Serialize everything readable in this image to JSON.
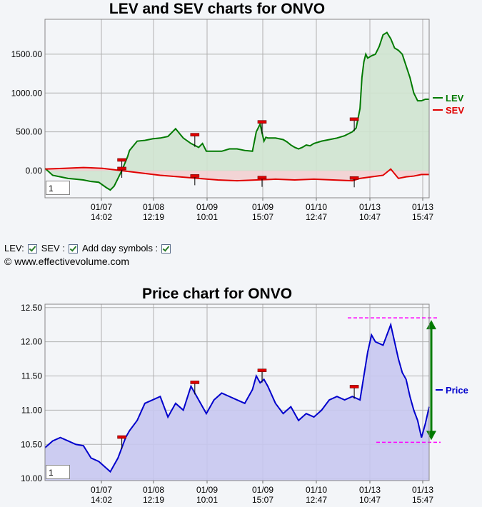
{
  "chart_data": [
    {
      "type": "area",
      "title": "LEV and SEV charts for ONVO",
      "ylim": [
        -350,
        1950
      ],
      "y_ticks": [
        "1500.00",
        "1000.00",
        "500.00",
        "0.00"
      ],
      "y_tick_values": [
        1500,
        1000,
        500,
        0
      ],
      "x_ticks": [
        {
          "date": "01/07",
          "time": "14:02"
        },
        {
          "date": "01/08",
          "time": "12:19"
        },
        {
          "date": "01/09",
          "time": "10:01"
        },
        {
          "date": "01/09",
          "time": "15:07"
        },
        {
          "date": "01/10",
          "time": "12:47"
        },
        {
          "date": "01/13",
          "time": "10:47"
        },
        {
          "date": "01/13",
          "time": "15:47"
        }
      ],
      "x_range": [
        0,
        100
      ],
      "grid": true,
      "legend_position": "right",
      "series": [
        {
          "name": "LEV",
          "color": "#007a00",
          "fill": "#cfe4cf",
          "x": [
            0,
            2,
            4,
            6,
            8,
            10,
            12,
            14,
            16,
            17,
            18,
            19,
            20,
            21,
            21.5,
            22,
            24,
            26,
            27,
            28,
            30,
            32,
            34,
            36,
            38,
            40,
            41,
            42,
            44,
            46,
            48,
            50,
            52,
            54,
            55,
            56,
            57,
            57.5,
            58,
            60,
            62,
            63,
            64,
            65,
            66,
            67,
            68,
            69,
            70,
            72,
            74,
            76,
            78,
            80,
            81,
            82,
            82.5,
            83,
            83.5,
            84,
            85,
            86,
            87,
            88,
            89,
            90,
            91,
            92,
            93,
            94,
            95,
            96,
            97,
            98,
            99,
            100
          ],
          "y": [
            30,
            -60,
            -80,
            -100,
            -110,
            -120,
            -140,
            -150,
            -220,
            -250,
            -200,
            -100,
            0,
            120,
            180,
            260,
            380,
            390,
            400,
            410,
            420,
            440,
            540,
            420,
            350,
            300,
            350,
            250,
            250,
            250,
            280,
            280,
            260,
            250,
            500,
            600,
            380,
            430,
            420,
            420,
            400,
            370,
            330,
            300,
            280,
            300,
            330,
            320,
            350,
            380,
            400,
            420,
            450,
            500,
            550,
            800,
            1200,
            1400,
            1500,
            1450,
            1480,
            1500,
            1600,
            1750,
            1780,
            1700,
            1580,
            1550,
            1500,
            1350,
            1200,
            1000,
            900,
            900,
            920,
            920
          ]
        },
        {
          "name": "SEV",
          "color": "#e00000",
          "fill": "#f2d0d0",
          "x": [
            0,
            5,
            10,
            15,
            20,
            25,
            30,
            35,
            40,
            45,
            50,
            55,
            60,
            65,
            70,
            75,
            80,
            82,
            85,
            88,
            90,
            92,
            94,
            96,
            98,
            100
          ],
          "y": [
            20,
            30,
            40,
            30,
            0,
            -30,
            -60,
            -80,
            -100,
            -120,
            -130,
            -120,
            -110,
            -120,
            -110,
            -120,
            -130,
            -100,
            -80,
            -60,
            20,
            -100,
            -80,
            -70,
            -50,
            -50
          ]
        }
      ],
      "day_symbols_x": [
        20,
        39,
        56.5,
        80.5
      ],
      "zoom_value": "1"
    },
    {
      "type": "area",
      "title": "Price chart for ONVO",
      "ylim": [
        9.97,
        12.55
      ],
      "y_ticks": [
        "12.50",
        "12.00",
        "11.50",
        "11.00",
        "10.50",
        "10.00"
      ],
      "y_tick_values": [
        12.5,
        12.0,
        11.5,
        11.0,
        10.5,
        10.0
      ],
      "x_ticks": [
        {
          "date": "01/07",
          "time": "14:02"
        },
        {
          "date": "01/08",
          "time": "12:19"
        },
        {
          "date": "01/09",
          "time": "10:01"
        },
        {
          "date": "01/09",
          "time": "15:07"
        },
        {
          "date": "01/10",
          "time": "12:47"
        },
        {
          "date": "01/13",
          "time": "10:47"
        },
        {
          "date": "01/13",
          "time": "15:47"
        }
      ],
      "x_range": [
        0,
        100
      ],
      "grid": true,
      "legend_position": "right",
      "series": [
        {
          "name": "Price",
          "color": "#0000cc",
          "fill": "#c8c8f0",
          "x": [
            0,
            2,
            4,
            6,
            8,
            10,
            12,
            14,
            16,
            17,
            18,
            19,
            20,
            21,
            22,
            24,
            26,
            28,
            30,
            32,
            34,
            36,
            38,
            40,
            42,
            44,
            46,
            48,
            50,
            52,
            54,
            55,
            56,
            57,
            58,
            60,
            62,
            64,
            66,
            68,
            70,
            72,
            74,
            76,
            78,
            80,
            82,
            84,
            85,
            86,
            88,
            90,
            92,
            93,
            94,
            95,
            96,
            97,
            98,
            99,
            100
          ],
          "y": [
            10.45,
            10.55,
            10.6,
            10.55,
            10.5,
            10.48,
            10.3,
            10.25,
            10.15,
            10.1,
            10.2,
            10.3,
            10.45,
            10.6,
            10.7,
            10.85,
            11.1,
            11.15,
            11.2,
            10.9,
            11.1,
            11.0,
            11.35,
            11.15,
            10.95,
            11.15,
            11.25,
            11.2,
            11.15,
            11.1,
            11.3,
            11.5,
            11.4,
            11.45,
            11.35,
            11.1,
            10.95,
            11.05,
            10.85,
            10.95,
            10.9,
            11.0,
            11.15,
            11.2,
            11.15,
            11.2,
            11.15,
            11.85,
            12.1,
            12.0,
            11.95,
            12.25,
            11.75,
            11.55,
            11.45,
            11.2,
            11.0,
            10.85,
            10.6,
            10.8,
            11.05
          ]
        }
      ],
      "day_symbols_x": [
        20,
        39,
        56.5,
        80.5
      ],
      "range_annotation": {
        "high": 12.35,
        "low": 10.53
      },
      "zoom_value": "1"
    }
  ],
  "controls": {
    "lev_label": "LEV:",
    "sev_label": "SEV :",
    "day_symbols_label": "Add day symbols :"
  },
  "copyright": "© www.effectivevolume.com"
}
